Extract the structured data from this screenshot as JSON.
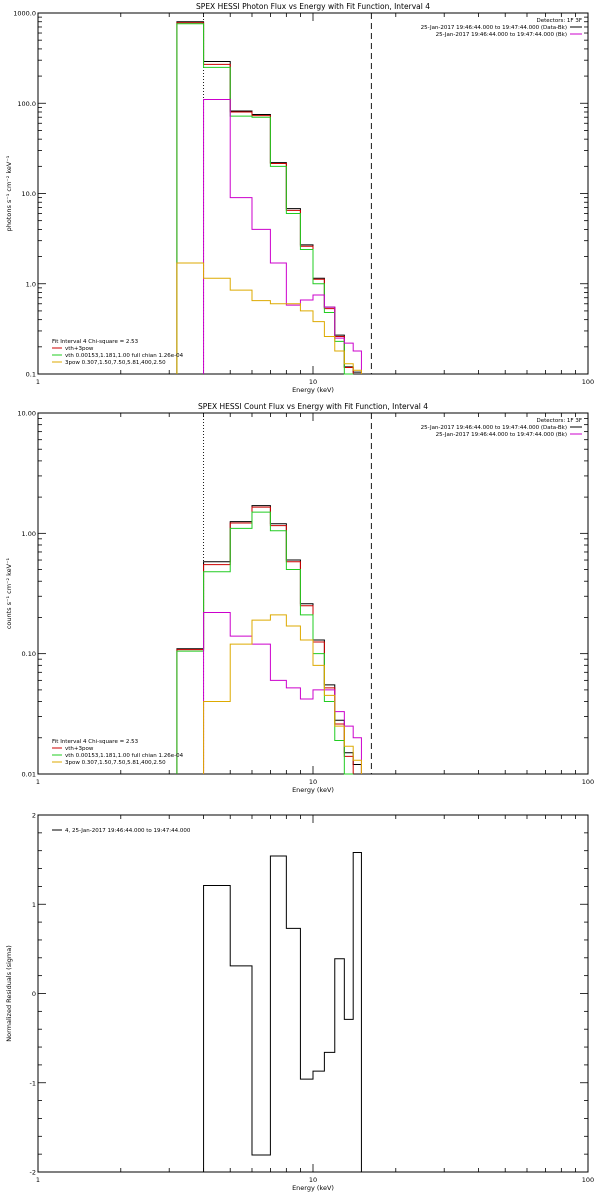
{
  "chart_data": [
    {
      "type": "line",
      "step": true,
      "title": "SPEX HESSI Photon Flux vs Energy with Fit Function, Interval 4",
      "xlabel": "Energy (keV)",
      "ylabel": "photons s⁻¹ cm⁻² keV⁻¹",
      "xscale": "log",
      "yscale": "log",
      "xlim": [
        1,
        100
      ],
      "ylim": [
        0.1,
        1000
      ],
      "x_ticks": [
        "1",
        "10",
        "100"
      ],
      "y_ticks": [
        "0.1",
        "1.0",
        "10.0",
        "100.0",
        "1000.0"
      ],
      "vlines": [
        {
          "x": 4.0,
          "style": "dotted"
        },
        {
          "x": 16.3,
          "style": "dashed"
        }
      ],
      "bin_edges": [
        3.2,
        4.0,
        5.0,
        6.0,
        7.0,
        8.0,
        9.0,
        10.0,
        11.0,
        12.0,
        13.0,
        14.0,
        15.0,
        16.3
      ],
      "series": [
        {
          "name": "",
          "color": "#000000",
          "values": [
            800,
            290,
            82,
            75,
            22,
            6.8,
            2.7,
            1.15,
            0.55,
            0.27,
            0.12,
            0.105
          ]
        },
        {
          "name": "",
          "color": "#cc0000",
          "values": [
            780,
            270,
            80,
            73,
            21.5,
            6.5,
            2.6,
            1.12,
            0.53,
            0.26,
            0.118
          ]
        },
        {
          "name": "",
          "color": "#22cc22",
          "values": [
            760,
            250,
            72,
            70,
            20,
            6.0,
            2.4,
            1.0,
            0.48,
            0.23,
            0.1
          ]
        },
        {
          "name": "",
          "color": "#cc00cc",
          "values": [
            null,
            110,
            9.0,
            4.0,
            1.7,
            0.58,
            0.66,
            0.75,
            0.55,
            0.25,
            0.22,
            0.18
          ]
        },
        {
          "name": "",
          "color": "#ddaa00",
          "values": [
            1.7,
            1.15,
            0.85,
            0.65,
            0.6,
            0.6,
            0.5,
            0.38,
            0.26,
            0.18,
            0.13,
            0.11
          ]
        }
      ],
      "legend_detectors": {
        "header": "Detectors: 1F 3F",
        "entries": [
          {
            "text": "25-Jan-2017 19:46:44.000 to 19:47:44.000 (Data-Bk)",
            "color": "#000000"
          },
          {
            "text": "25-Jan-2017 19:46:44.000 to 19:47:44.000 (Bk)",
            "color": "#cc00cc"
          }
        ]
      },
      "legend_fit": {
        "header": "Fit Interval 4   Chi-square = 2.53",
        "entries": [
          {
            "text": "vth+3pow",
            "color": "#cc0000"
          },
          {
            "text": "vth 0.00153,1.181,1.00  full chian 1.26e-04",
            "color": "#22cc22"
          },
          {
            "text": "3pow 0.307,1.50,7.50,5.81,400,2.50",
            "color": "#ddaa00"
          }
        ]
      }
    },
    {
      "type": "line",
      "step": true,
      "title": "SPEX HESSI Count Flux vs Energy with Fit Function, Interval 4",
      "xlabel": "Energy (keV)",
      "ylabel": "counts s⁻¹ cm⁻² keV⁻¹",
      "xscale": "log",
      "yscale": "log",
      "xlim": [
        1,
        100
      ],
      "ylim": [
        0.01,
        10
      ],
      "x_ticks": [
        "1",
        "10",
        "100"
      ],
      "y_ticks": [
        "0.01",
        "0.10",
        "1.00",
        "10.00"
      ],
      "vlines": [
        {
          "x": 4.0,
          "style": "dotted"
        },
        {
          "x": 16.3,
          "style": "dashed"
        }
      ],
      "bin_edges": [
        3.2,
        4.0,
        5.0,
        6.0,
        7.0,
        8.0,
        9.0,
        10.0,
        11.0,
        12.0,
        13.0,
        14.0,
        15.0,
        16.3
      ],
      "series": [
        {
          "name": "",
          "color": "#000000",
          "values": [
            0.11,
            0.58,
            1.25,
            1.7,
            1.2,
            0.6,
            0.26,
            0.13,
            0.055,
            0.028,
            0.015,
            0.012
          ]
        },
        {
          "name": "",
          "color": "#cc0000",
          "values": [
            0.108,
            0.55,
            1.22,
            1.65,
            1.16,
            0.58,
            0.25,
            0.125,
            0.052,
            0.026,
            0.014
          ]
        },
        {
          "name": "",
          "color": "#22cc22",
          "values": [
            0.105,
            0.48,
            1.1,
            1.5,
            1.05,
            0.5,
            0.21,
            0.1,
            0.04,
            0.019,
            0.01
          ]
        },
        {
          "name": "",
          "color": "#cc00cc",
          "values": [
            null,
            0.22,
            0.14,
            0.12,
            0.06,
            0.052,
            0.042,
            0.05,
            0.05,
            0.033,
            0.025,
            0.02
          ]
        },
        {
          "name": "",
          "color": "#ddaa00",
          "values": [
            null,
            0.04,
            0.12,
            0.19,
            0.21,
            0.17,
            0.13,
            0.08,
            0.045,
            0.025,
            0.017,
            0.013
          ]
        }
      ],
      "legend_detectors": {
        "header": "Detectors: 1F 3F",
        "entries": [
          {
            "text": "25-Jan-2017 19:46:44.000 to 19:47:44.000 (Data-Bk)",
            "color": "#000000"
          },
          {
            "text": "25-Jan-2017 19:46:44.000 to 19:47:44.000 (Bk)",
            "color": "#cc00cc"
          }
        ]
      },
      "legend_fit": {
        "header": "Fit Interval 4   Chi-square = 2.53",
        "entries": [
          {
            "text": "vth+3pow",
            "color": "#cc0000"
          },
          {
            "text": "vth 0.00153,1.181,1.00  full chian 1.26e-04",
            "color": "#22cc22"
          },
          {
            "text": "3pow 0.307,1.50,7.50,5.81,400,2.50",
            "color": "#ddaa00"
          }
        ]
      }
    },
    {
      "type": "line",
      "step": true,
      "title": "",
      "xlabel": "Energy (keV)",
      "ylabel": "Normalized Residuals (sigma)",
      "xscale": "log",
      "yscale": "linear",
      "xlim": [
        1,
        100
      ],
      "ylim": [
        -2,
        2
      ],
      "x_ticks": [
        "1",
        "10",
        "100"
      ],
      "y_ticks": [
        "-2",
        "-1",
        "0",
        "1",
        "2"
      ],
      "bin_edges": [
        4.0,
        5.0,
        6.0,
        7.0,
        8.0,
        9.0,
        10.0,
        11.0,
        12.0,
        13.0,
        14.0,
        15.0,
        16.3
      ],
      "series": [
        {
          "name": "4, 25-Jan-2017 19:46:44.000 to 19:47:44.000",
          "color": "#000000",
          "values": [
            1.21,
            0.31,
            -1.81,
            1.54,
            0.73,
            -0.96,
            -0.87,
            -0.66,
            0.39,
            -0.29,
            1.58
          ]
        }
      ],
      "legend": {
        "entries": [
          {
            "text": "4, 25-Jan-2017 19:46:44.000 to 19:47:44.000",
            "color": "#000000"
          }
        ]
      }
    }
  ]
}
